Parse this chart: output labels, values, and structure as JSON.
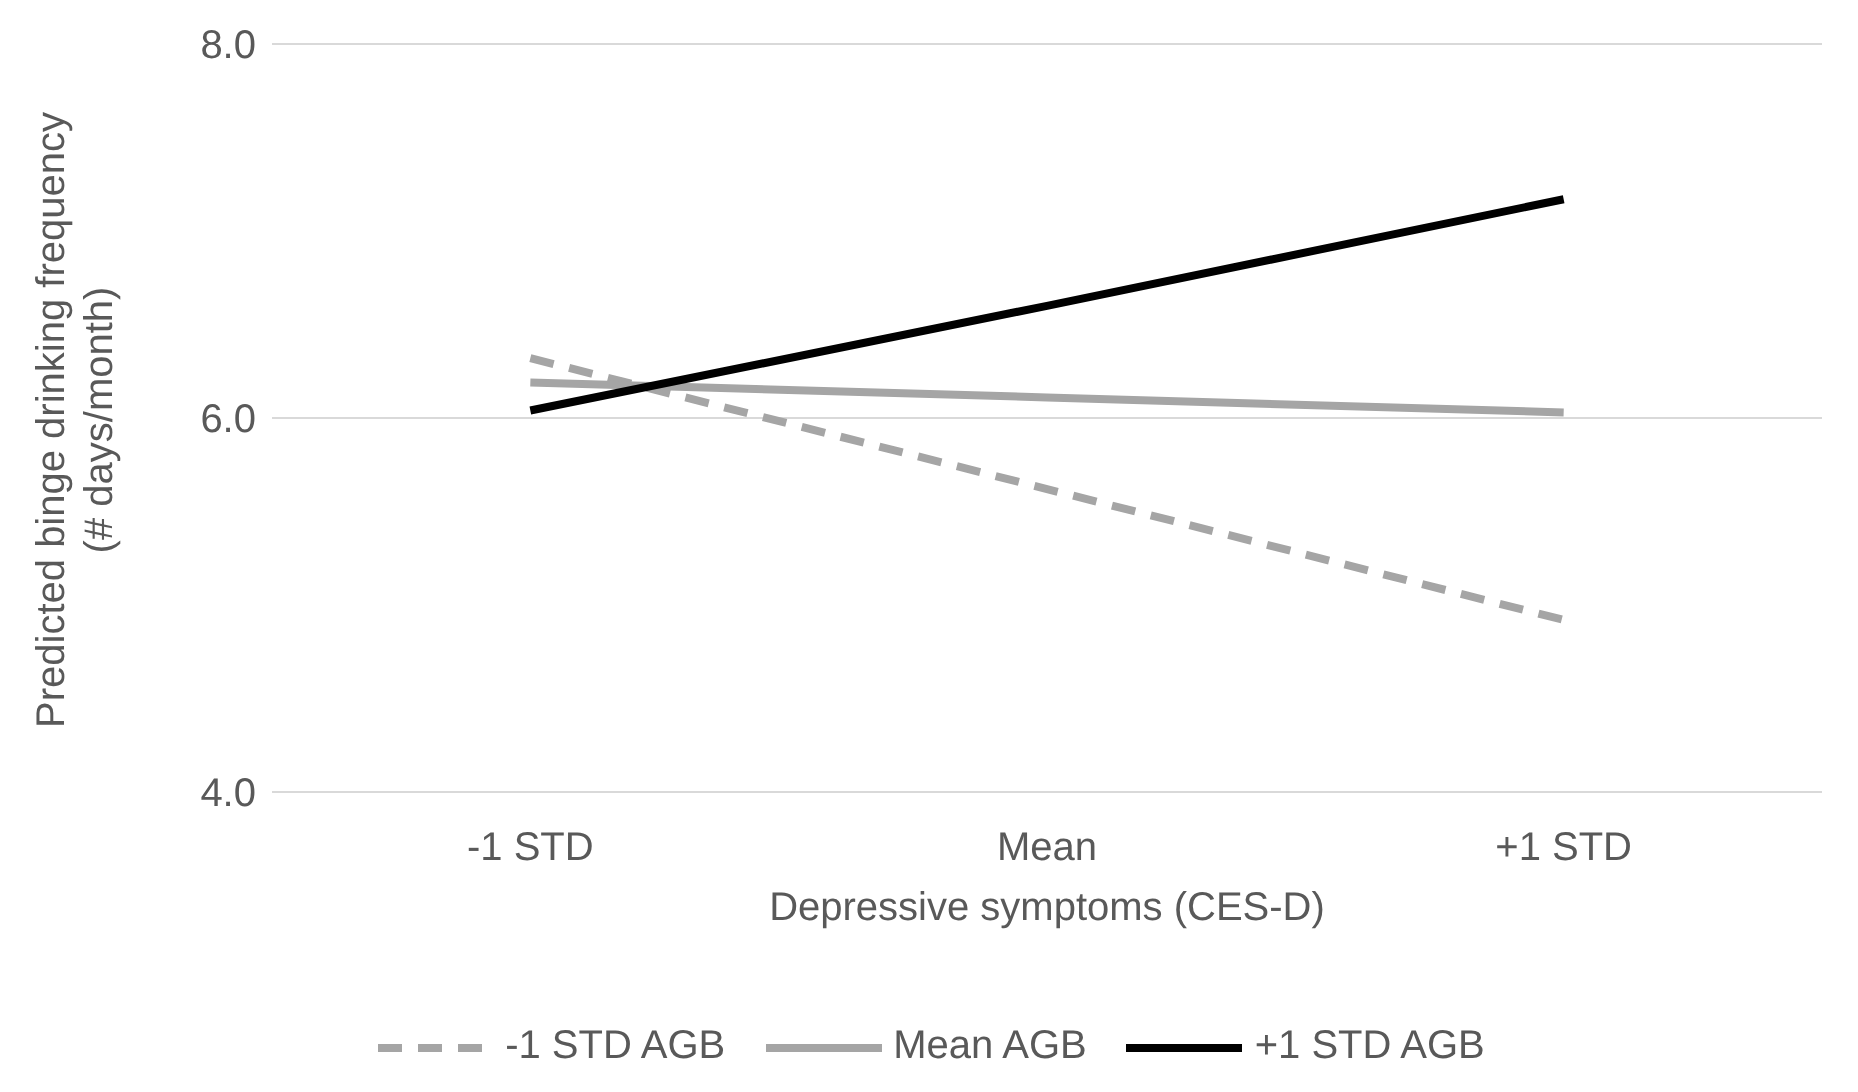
{
  "chart_data": {
    "type": "line",
    "xlabel": "Depressive symptoms (CES-D)",
    "ylabel": "Predicted binge drinking frequency (# days/month)",
    "categories": [
      "-1 STD",
      "Mean",
      "+1 STD"
    ],
    "series": [
      {
        "name": "-1 STD AGB",
        "color": "#a5a5a5",
        "line_style": "dashed",
        "values": [
          6.32,
          5.62,
          4.92
        ]
      },
      {
        "name": "Mean AGB",
        "color": "#a5a5a5",
        "line_style": "solid",
        "values": [
          6.19,
          6.11,
          6.03
        ]
      },
      {
        "name": "+1 STD AGB",
        "color": "#000000",
        "line_style": "solid",
        "values": [
          6.04,
          6.6,
          7.17
        ]
      }
    ],
    "ylim": [
      4,
      8
    ],
    "yticks": [
      {
        "value": 4,
        "label": "4.0"
      },
      {
        "value": 6,
        "label": "6.0"
      },
      {
        "value": 8,
        "label": "8.0"
      }
    ],
    "grid": "y",
    "legend": "bottom",
    "marker": "none"
  }
}
